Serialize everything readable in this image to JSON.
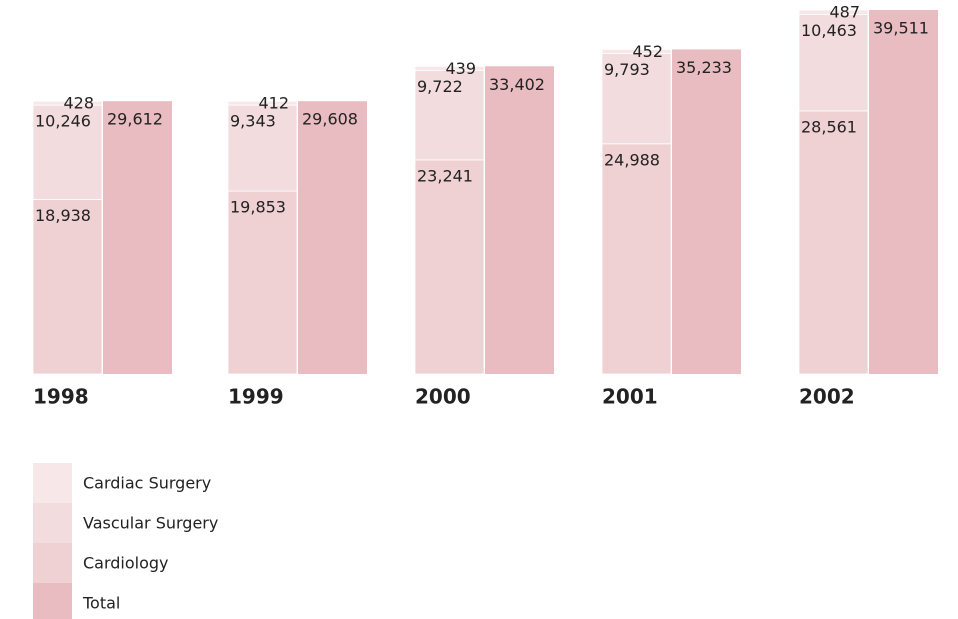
{
  "chart_data": {
    "type": "bar",
    "categories": [
      "1998",
      "1999",
      "2000",
      "2001",
      "2002"
    ],
    "series": [
      {
        "name": "Cardiac Surgery",
        "color": "#f7e7e8",
        "values": [
          428,
          412,
          439,
          452,
          487
        ],
        "value_labels": [
          "428",
          "412",
          "439",
          "452",
          "487"
        ]
      },
      {
        "name": "Vascular Surgery",
        "color": "#f3dcdd",
        "values": [
          10246,
          9343,
          9722,
          9793,
          10463
        ],
        "value_labels": [
          "10,246",
          "9,343",
          "9,722",
          "9,793",
          "10,463"
        ]
      },
      {
        "name": "Cardiology",
        "color": "#efd0d3",
        "values": [
          18938,
          19853,
          23241,
          24988,
          28561
        ],
        "value_labels": [
          "18,938",
          "19,853",
          "23,241",
          "24,988",
          "28,561"
        ]
      },
      {
        "name": "Total",
        "color": "#e8bcc0",
        "values": [
          29612,
          29608,
          33402,
          35233,
          39511
        ],
        "value_labels": [
          "29,612",
          "29,608",
          "33,402",
          "35,233",
          "39,511"
        ]
      }
    ]
  }
}
